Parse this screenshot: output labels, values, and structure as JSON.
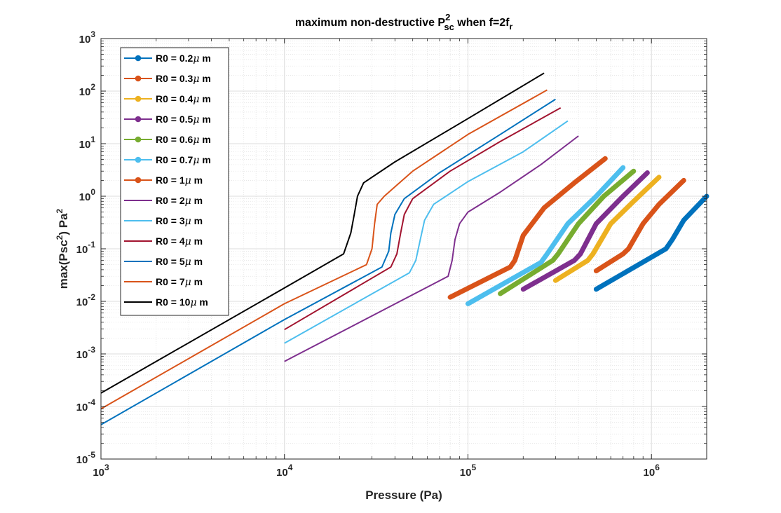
{
  "chart_data": {
    "type": "line",
    "title": {
      "prefix": "maximum non-destructive  P",
      "superscript": "2",
      "subscript": "sc",
      "suffix": " when f=2f",
      "suffix_subscript": "r"
    },
    "xlabel": "Pressure (Pa)",
    "ylabel": {
      "main": "max(Psc",
      "sup1": "2",
      "mid": ") Pa",
      "sup2": "2"
    },
    "xscale": "log",
    "yscale": "log",
    "xlim": [
      1000,
      2000000
    ],
    "ylim": [
      1e-05,
      1000
    ],
    "grid": true,
    "legend_position": "top-left",
    "x_ticks": [
      {
        "value": 1000,
        "base": "10",
        "exp": "3"
      },
      {
        "value": 10000,
        "base": "10",
        "exp": "4"
      },
      {
        "value": 100000,
        "base": "10",
        "exp": "5"
      },
      {
        "value": 1000000,
        "base": "10",
        "exp": "6"
      }
    ],
    "y_ticks": [
      {
        "value": 1e-05,
        "base": "10",
        "exp": "-5"
      },
      {
        "value": 0.0001,
        "base": "10",
        "exp": "-4"
      },
      {
        "value": 0.001,
        "base": "10",
        "exp": "-3"
      },
      {
        "value": 0.01,
        "base": "10",
        "exp": "-2"
      },
      {
        "value": 0.1,
        "base": "10",
        "exp": "-1"
      },
      {
        "value": 1,
        "base": "10",
        "exp": "0"
      },
      {
        "value": 10,
        "base": "10",
        "exp": "1"
      },
      {
        "value": 100,
        "base": "10",
        "exp": "2"
      },
      {
        "value": 1000,
        "base": "10",
        "exp": "3"
      }
    ],
    "series": [
      {
        "name": "R0 = 0.2μ m",
        "label_pre": "R0 = 0.2",
        "label_post": " m",
        "color": "#0072BD",
        "thick": true,
        "marker": true,
        "x": [
          500000,
          1200000,
          1300000,
          1500000,
          2000000
        ],
        "y": [
          0.017,
          0.1,
          0.15,
          0.35,
          1.0
        ]
      },
      {
        "name": "R0 = 0.3μ m",
        "label_pre": "R0 = 0.3",
        "label_post": " m",
        "color": "#D95319",
        "thick": true,
        "marker": true,
        "x": [
          500000,
          700000,
          750000,
          900000,
          1100000,
          1500000
        ],
        "y": [
          0.038,
          0.08,
          0.1,
          0.3,
          0.7,
          2.0
        ]
      },
      {
        "name": "R0 = 0.4μ m",
        "label_pre": "R0 = 0.4",
        "label_post": " m",
        "color": "#EDB120",
        "thick": true,
        "marker": true,
        "x": [
          300000,
          450000,
          480000,
          600000,
          800000,
          1100000
        ],
        "y": [
          0.025,
          0.06,
          0.08,
          0.3,
          0.8,
          2.3
        ]
      },
      {
        "name": "R0 = 0.5μ m",
        "label_pre": "R0 = 0.5",
        "label_post": " m",
        "color": "#7E2F8E",
        "thick": true,
        "marker": true,
        "x": [
          200000,
          380000,
          410000,
          500000,
          700000,
          950000
        ],
        "y": [
          0.017,
          0.06,
          0.08,
          0.3,
          1.0,
          2.8
        ]
      },
      {
        "name": "R0 = 0.6μ m",
        "label_pre": "R0 = 0.6",
        "label_post": " m",
        "color": "#77AC30",
        "thick": true,
        "marker": true,
        "x": [
          150000,
          290000,
          310000,
          400000,
          550000,
          800000
        ],
        "y": [
          0.014,
          0.06,
          0.08,
          0.3,
          1.0,
          3.0
        ]
      },
      {
        "name": "R0 = 0.7μ m",
        "label_pre": "R0 = 0.7",
        "label_post": " m",
        "color": "#4DBEEE",
        "thick": true,
        "marker": true,
        "x": [
          100000,
          250000,
          270000,
          350000,
          500000,
          700000
        ],
        "y": [
          0.009,
          0.055,
          0.08,
          0.3,
          1.0,
          3.5
        ]
      },
      {
        "name": "R0 = 1μ m",
        "label_pre": "R0 = 1",
        "label_post": " m",
        "color": "#D95319",
        "thick": true,
        "marker": true,
        "x": [
          80000,
          170000,
          180000,
          200000,
          260000,
          380000,
          560000
        ],
        "y": [
          0.012,
          0.045,
          0.06,
          0.18,
          0.6,
          1.8,
          5.2
        ]
      },
      {
        "name": "R0 = 2μ m",
        "label_pre": "R0 = 2",
        "label_post": " m",
        "color": "#7E2F8E",
        "thick": false,
        "marker": false,
        "x": [
          10000,
          78000,
          82000,
          85000,
          90000,
          100000,
          150000,
          250000,
          400000
        ],
        "y": [
          0.00072,
          0.03,
          0.06,
          0.15,
          0.3,
          0.5,
          1.2,
          4.0,
          14.0
        ]
      },
      {
        "name": "R0 = 3μ m",
        "label_pre": "R0 = 3",
        "label_post": " m",
        "color": "#4DBEEE",
        "thick": false,
        "marker": false,
        "x": [
          10000,
          48000,
          52000,
          55000,
          58000,
          65000,
          100000,
          200000,
          350000
        ],
        "y": [
          0.0016,
          0.035,
          0.06,
          0.15,
          0.35,
          0.7,
          1.9,
          7.0,
          27.0
        ]
      },
      {
        "name": "R0 = 4μ m",
        "label_pre": "R0 = 4",
        "label_post": " m",
        "color": "#A2142F",
        "thick": false,
        "marker": false,
        "x": [
          10000,
          38000,
          41000,
          43000,
          45000,
          50000,
          80000,
          150000,
          320000
        ],
        "y": [
          0.0029,
          0.045,
          0.08,
          0.2,
          0.45,
          0.9,
          3.0,
          11.0,
          48.0
        ]
      },
      {
        "name": "R0 = 5μ m",
        "label_pre": "R0 = 5",
        "label_post": " m",
        "color": "#0072BD",
        "thick": false,
        "marker": false,
        "x": [
          1000,
          10000,
          34000,
          37000,
          38000,
          40000,
          45000,
          70000,
          150000,
          300000
        ],
        "y": [
          4.5e-05,
          0.0045,
          0.045,
          0.09,
          0.2,
          0.45,
          0.9,
          2.8,
          15.0,
          70.0
        ]
      },
      {
        "name": "R0 = 7μ m",
        "label_pre": "R0 = 7",
        "label_post": " m",
        "color": "#D95319",
        "thick": false,
        "marker": false,
        "x": [
          1000,
          10000,
          28000,
          30000,
          31000,
          32000,
          35000,
          50000,
          100000,
          270000
        ],
        "y": [
          9e-05,
          0.009,
          0.05,
          0.1,
          0.3,
          0.7,
          1.0,
          3.0,
          15.0,
          105.0
        ]
      },
      {
        "name": "R0 = 10μ m",
        "label_pre": "R0 = 10",
        "label_post": " m",
        "color": "#000000",
        "thick": false,
        "marker": false,
        "x": [
          1000,
          10000,
          21000,
          23000,
          24000,
          25000,
          27000,
          40000,
          100000,
          260000
        ],
        "y": [
          0.00018,
          0.018,
          0.08,
          0.2,
          0.45,
          1.0,
          1.8,
          4.5,
          30.0,
          220.0
        ]
      }
    ]
  }
}
